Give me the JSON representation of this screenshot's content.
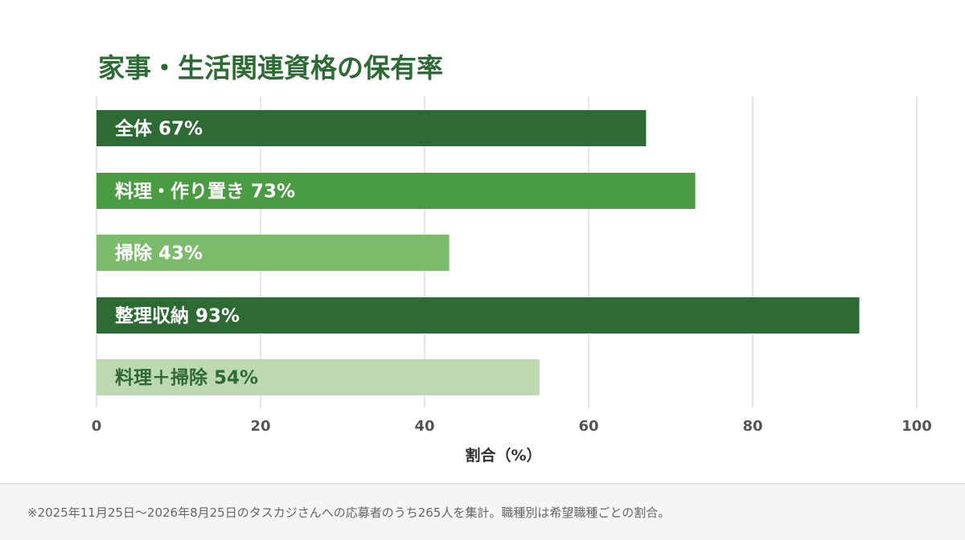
{
  "chart_data": {
    "type": "bar",
    "orientation": "horizontal",
    "title": "家事・生活関連資格の保有率",
    "categories": [
      "全体",
      "料理・作り置き",
      "掃除",
      "整理収納",
      "料理＋掃除"
    ],
    "values": [
      67,
      73,
      43,
      93,
      54
    ],
    "value_labels": [
      "67%",
      "73%",
      "43%",
      "93%",
      "54%"
    ],
    "bar_colors": [
      "#2e6b34",
      "#4a9c43",
      "#7dbb6c",
      "#2e6b34",
      "#bcd9b0"
    ],
    "label_colors": [
      "#ffffff",
      "#ffffff",
      "#ffffff",
      "#ffffff",
      "#2e6b34"
    ],
    "xlabel": "割合（%）",
    "xlim": [
      0,
      100
    ],
    "xticks": [
      0,
      20,
      40,
      60,
      80,
      100
    ],
    "xtick_labels": [
      "0",
      "20",
      "40",
      "60",
      "80",
      "100"
    ],
    "grid": true
  },
  "footnote": "※2025年11月25日〜2026年8月25日のタスカジさんへの応募者のうち265人を集計。職種別は希望職種ごとの割合。"
}
